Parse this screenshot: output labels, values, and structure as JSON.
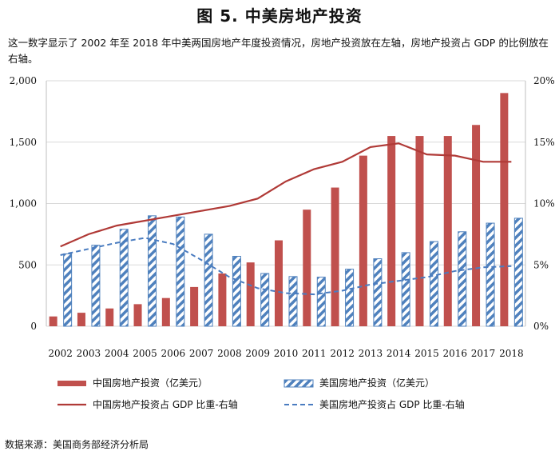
{
  "title": "图 5. 中美房地产投资",
  "description": "这一数字显示了 2002 年至 2018 年中美两国房地产年度投资情况，房地产投资放在左轴，房地产投资占 GDP 的比例放在右轴。",
  "source": "数据来源：美国商务部经济分析局",
  "colors": {
    "china": "#c0504d",
    "china_dark": "#b03a37",
    "us_blue": "#4f81bd",
    "us_dash": "#4a7cc0",
    "grid": "#d9d9d9"
  },
  "chart_data": {
    "type": "bar",
    "categories": [
      "2002",
      "2003",
      "2004",
      "2005",
      "2006",
      "2007",
      "2008",
      "2009",
      "2010",
      "2011",
      "2012",
      "2013",
      "2014",
      "2015",
      "2016",
      "2017",
      "2018"
    ],
    "y_left": {
      "ylim": [
        0,
        2000
      ],
      "ticks": [
        0,
        500,
        1000,
        1500,
        2000
      ],
      "tick_labels": [
        "0",
        "500",
        "1,000",
        "1,500",
        "2,000"
      ]
    },
    "y_right": {
      "ylim": [
        0,
        20
      ],
      "ticks": [
        0,
        5,
        10,
        15,
        20
      ],
      "tick_labels": [
        "0%",
        "5%",
        "10%",
        "15%",
        "20%"
      ]
    },
    "grid": true,
    "legend_position": "bottom",
    "series": [
      {
        "name": "中国房地产投资（亿美元）",
        "type": "bar",
        "axis": "left",
        "values": [
          80,
          110,
          145,
          180,
          230,
          320,
          430,
          520,
          700,
          950,
          1130,
          1390,
          1550,
          1550,
          1550,
          1640,
          1900
        ]
      },
      {
        "name": "美国房地产投资（亿美元）",
        "type": "bar",
        "axis": "left",
        "pattern": "diagonal-stripes",
        "values": [
          590,
          660,
          790,
          900,
          890,
          750,
          570,
          430,
          405,
          400,
          465,
          550,
          600,
          690,
          770,
          840,
          880
        ]
      },
      {
        "name": "中国房地产投资占 GDP 比重-右轴",
        "type": "line",
        "axis": "right",
        "values": [
          6.5,
          7.5,
          8.2,
          8.6,
          9.0,
          9.4,
          9.8,
          10.4,
          11.8,
          12.8,
          13.4,
          14.6,
          14.9,
          14.0,
          13.9,
          13.4,
          13.4
        ]
      },
      {
        "name": "美国房地产投资占 GDP 比重-右轴",
        "type": "line",
        "axis": "right",
        "style": "dashed",
        "values": [
          5.8,
          6.3,
          6.8,
          7.2,
          6.7,
          5.4,
          4.0,
          3.1,
          2.7,
          2.6,
          2.9,
          3.4,
          3.7,
          4.0,
          4.5,
          4.8,
          4.9
        ]
      }
    ]
  }
}
